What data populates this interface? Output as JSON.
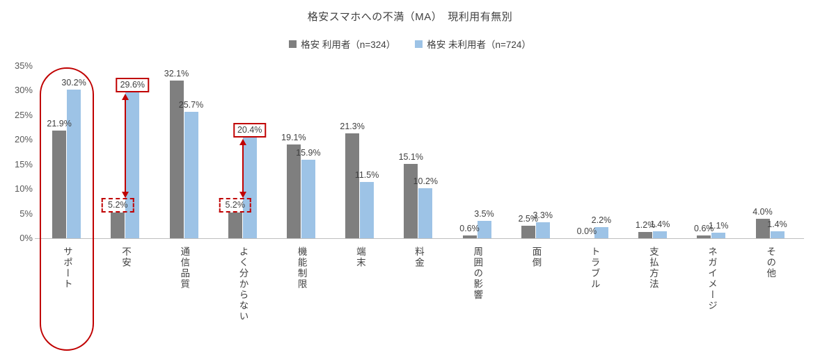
{
  "title": "格安スマホへの不満（MA）　現利用有無別",
  "chart_data": {
    "type": "bar",
    "title": "格安スマホへの不満（MA）　現利用有無別",
    "categories": [
      "サポート",
      "不安",
      "通信品質",
      "よく分からない",
      "機能制限",
      "端末",
      "料金",
      "周囲の影響",
      "面倒",
      "トラブル",
      "支払方法",
      "ネガイメージ",
      "その他"
    ],
    "series": [
      {
        "name": "格安 利用者（n=324）",
        "color": "#7F7F7F",
        "values": [
          21.9,
          5.2,
          32.1,
          5.2,
          19.1,
          21.3,
          15.1,
          0.6,
          2.5,
          0.0,
          1.2,
          0.6,
          4.0
        ]
      },
      {
        "name": "格安 未利用者（n=724）",
        "color": "#9DC3E6",
        "values": [
          30.2,
          29.6,
          25.7,
          20.4,
          15.9,
          11.5,
          10.2,
          3.5,
          3.3,
          2.2,
          1.4,
          1.1,
          1.4
        ]
      }
    ],
    "ylabel": "",
    "xlabel": "",
    "ylim": [
      0,
      35
    ],
    "ytick_labels": [
      "0%",
      "5%",
      "10%",
      "15%",
      "20%",
      "25%",
      "30%",
      "35%"
    ],
    "grid": false,
    "legend_position": "top",
    "value_label_decimals": 1,
    "value_label_suffix": "%"
  },
  "annotations": {
    "accent_color": "#C00000",
    "circled_category": "サポート",
    "gap_pairs": [
      {
        "category": "不安",
        "solid_box_series": 1,
        "dashed_box_series": 0
      },
      {
        "category": "よく分からない",
        "solid_box_series": 1,
        "dashed_box_series": 0
      }
    ]
  }
}
